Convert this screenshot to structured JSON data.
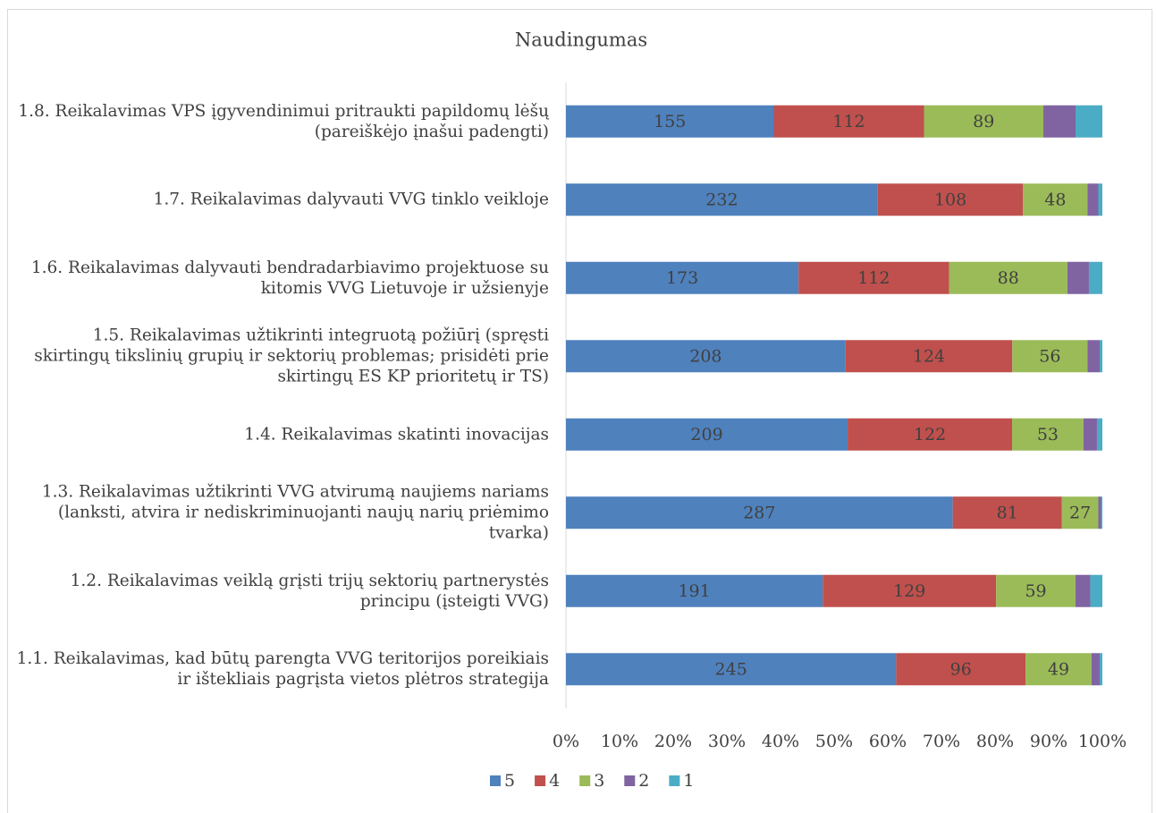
{
  "chart_data": {
    "type": "bar",
    "orientation": "horizontal",
    "stacked": "percent",
    "title": "Naudingumas",
    "categories": [
      "1.1. Reikalavimas, kad būtų parengta VVG teritorijos poreikiais ir ištekliais pagrįsta vietos plėtros strategija",
      "1.2. Reikalavimas veiklą grįsti trijų sektorių partnerystės principu (įsteigti VVG)",
      "1.3. Reikalavimas užtikrinti VVG atvirumą naujiems nariams (lanksti, atvira ir nediskriminuojanti naujų narių priėmimo tvarka)",
      "1.4. Reikalavimas skatinti inovacijas",
      "1.5. Reikalavimas užtikrinti integruotą požiūrį (spręsti skirtingų tikslinių grupių ir sektorių problemas; prisidėti prie skirtingų ES KP prioritetų ir TS)",
      "1.6. Reikalavimas dalyvauti bendradarbiavimo projektuose su kitomis VVG Lietuvoje ir užsienyje",
      "1.7. Reikalavimas dalyvauti VVG tinklo veikloje",
      "1.8. Reikalavimas VPS įgyvendinimui pritraukti papildomų lėšų (pareiškėjo įnašui padengti)"
    ],
    "series": [
      {
        "name": "5",
        "color": "#4f81bd",
        "data_labels": true,
        "values": [
          245,
          191,
          287,
          209,
          208,
          173,
          232,
          155
        ]
      },
      {
        "name": "4",
        "color": "#c0504d",
        "data_labels": true,
        "values": [
          96,
          129,
          81,
          122,
          124,
          112,
          108,
          112
        ]
      },
      {
        "name": "3",
        "color": "#9bbb59",
        "data_labels": true,
        "values": [
          49,
          59,
          27,
          53,
          56,
          88,
          48,
          89
        ]
      },
      {
        "name": "2",
        "color": "#8064a2",
        "data_labels": false,
        "values": [
          6,
          11,
          2,
          10,
          9,
          16,
          8,
          24
        ]
      },
      {
        "name": "1",
        "color": "#4bacc6",
        "data_labels": false,
        "values": [
          2,
          9,
          1,
          4,
          2,
          10,
          3,
          20
        ]
      }
    ],
    "xlim": [
      0,
      100
    ],
    "xticks": [
      {
        "value": 0,
        "label": "0%"
      },
      {
        "value": 10,
        "label": "10%"
      },
      {
        "value": 20,
        "label": "20%"
      },
      {
        "value": 30,
        "label": "30%"
      },
      {
        "value": 40,
        "label": "40%"
      },
      {
        "value": 50,
        "label": "50%"
      },
      {
        "value": 60,
        "label": "60%"
      },
      {
        "value": 70,
        "label": "70%"
      },
      {
        "value": 80,
        "label": "80%"
      },
      {
        "value": 90,
        "label": "90%"
      },
      {
        "value": 100,
        "label": "100%"
      }
    ],
    "legend": "bottom"
  }
}
